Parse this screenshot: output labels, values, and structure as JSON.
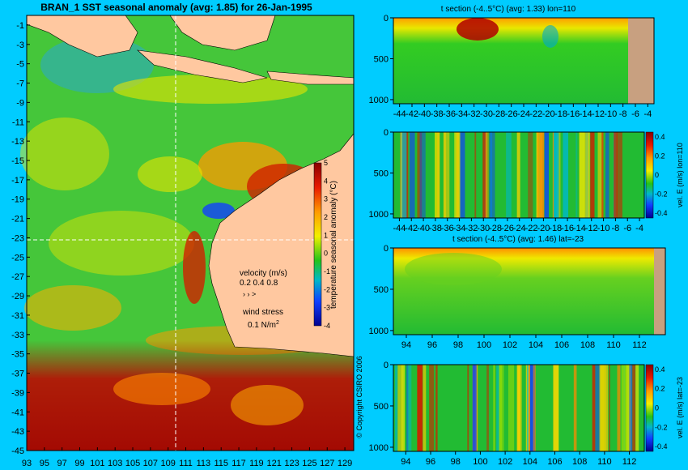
{
  "map": {
    "title": "BRAN_1 SST seasonal anomaly (avg: 1.85) for 26-Jan-1995",
    "lat_ticks": [
      "-1",
      "-3",
      "-5",
      "-7",
      "-9",
      "-11",
      "-13",
      "-15",
      "-17",
      "-19",
      "-21",
      "-23",
      "-25",
      "-27",
      "-29",
      "-31",
      "-33",
      "-35",
      "-37",
      "-39",
      "-41",
      "-43",
      "-45"
    ],
    "lon_ticks": [
      "93",
      "95",
      "97",
      "99",
      "101",
      "103",
      "105",
      "107",
      "109",
      "111",
      "113",
      "115",
      "117",
      "119",
      "121",
      "123",
      "125",
      "127",
      "129"
    ],
    "colorbar_label": "temperature seasonal anomaly (°C)",
    "colorbar_ticks": [
      "5",
      "4",
      "3",
      "2",
      "1",
      "0",
      "-1",
      "-2",
      "-3",
      "-4"
    ],
    "velocity_label": "velocity (m/s)",
    "velocity_scale": "0.2 0.4 0.8",
    "wind_label": "wind stress",
    "wind_scale": "0.1 N/m",
    "wind_scale_sup": "2",
    "copyright": "© Copyright CSIRO 2006"
  },
  "panels": [
    {
      "title": "t section (-4..5°C) (avg: 1.33) lon=110",
      "y_ticks": [
        "0",
        "500",
        "1000"
      ],
      "x_ticks": [
        "-44",
        "-42",
        "-40",
        "-38",
        "-36",
        "-34",
        "-32",
        "-30",
        "-28",
        "-26",
        "-24",
        "-22",
        "-20",
        "-18",
        "-16",
        "-14",
        "-12",
        "-10",
        "-8",
        "-6",
        "-4"
      ]
    },
    {
      "title": "",
      "y_ticks": [
        "0",
        "500",
        "1000"
      ],
      "x_ticks": [
        "-44",
        "-42",
        "-40",
        "-38",
        "-36",
        "-34",
        "-32",
        "-30",
        "-28",
        "-26",
        "-24",
        "-22",
        "-20",
        "-18",
        "-16",
        "-14",
        "-12",
        "-10",
        "-8",
        "-6",
        "-4"
      ],
      "cbar_label": "vel. E (m/s) lon=110",
      "cbar_ticks": [
        "0.4",
        "0.2",
        "0",
        "-0.2",
        "-0.4"
      ]
    },
    {
      "title": "t section (-4..5°C) (avg: 1.46) lat=-23",
      "y_ticks": [
        "0",
        "500",
        "1000"
      ],
      "x_ticks": [
        "94",
        "96",
        "98",
        "100",
        "102",
        "104",
        "106",
        "108",
        "110",
        "112"
      ]
    },
    {
      "title": "",
      "y_ticks": [
        "0",
        "500",
        "1000"
      ],
      "x_ticks": [
        "94",
        "96",
        "98",
        "100",
        "102",
        "104",
        "106",
        "108",
        "110",
        "112"
      ],
      "cbar_label": "vel. E (m/s) lat=-23",
      "cbar_ticks": [
        "0.4",
        "0.2",
        "0",
        "-0.2",
        "-0.4"
      ]
    }
  ],
  "chart_data": [
    {
      "type": "heatmap",
      "title": "BRAN_1 SST seasonal anomaly (avg: 1.85) for 26-Jan-1995",
      "x_range": [
        93,
        130
      ],
      "y_range": [
        -45,
        0
      ],
      "color_range": [
        -4,
        5
      ],
      "colorbar_label": "temperature seasonal anomaly (°C)"
    },
    {
      "type": "heatmap",
      "title": "t section (-4..5°C) (avg: 1.33) lon=110",
      "x_range": [
        -45,
        -3
      ],
      "y_range": [
        1050,
        0
      ]
    },
    {
      "type": "heatmap",
      "title": "",
      "x_range": [
        -45,
        -3
      ],
      "y_range": [
        1050,
        0
      ],
      "color_range": [
        -0.45,
        0.45
      ],
      "colorbar_label": "vel. E (m/s) lon=110"
    },
    {
      "type": "heatmap",
      "title": "t section (-4..5°C) (avg: 1.46) lat=-23",
      "x_range": [
        93,
        114
      ],
      "y_range": [
        1050,
        0
      ]
    },
    {
      "type": "heatmap",
      "title": "",
      "x_range": [
        93,
        113
      ],
      "y_range": [
        1050,
        0
      ],
      "color_range": [
        -0.45,
        0.45
      ],
      "colorbar_label": "vel. E (m/s) lat=-23"
    }
  ]
}
